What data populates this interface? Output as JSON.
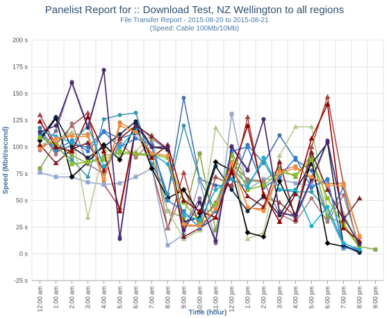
{
  "chart_data": {
    "type": "line",
    "title": "Panelist Report for :: Download Test, NZ Wellington to all regions",
    "subtitle": "File Transfer Report - 2015-08-20 to 2015-08-21",
    "subtitle2": "(Speed: Cable 100Mb/10Mb)",
    "xlabel": "Time (hour)",
    "ylabel": "Speed (Mbit/second)",
    "ylim": [
      -25,
      200
    ],
    "yticks": [
      -25,
      0,
      25,
      50,
      75,
      100,
      125,
      150,
      175,
      200
    ],
    "ytick_labels": [
      "-25 s",
      "0 s",
      "25 s",
      "50 s",
      "75 s",
      "100 s",
      "125 s",
      "150 s",
      "175 s",
      "200 s"
    ],
    "categories": [
      "12:00 am",
      "1:00 am",
      "2:00 am",
      "3:00 am",
      "4:00 am",
      "5:00 am",
      "6:00 am",
      "7:00 am",
      "8:00 am",
      "9:00 am",
      "10:00 am",
      "11:00 am",
      "12:00 pm",
      "1:00 pm",
      "2:00 pm",
      "3:00 pm",
      "4:00 pm",
      "5:00 pm",
      "6:00 pm",
      "7:00 pm",
      "8:00 pm",
      "9:00 pm"
    ],
    "grid": true,
    "legend": "none",
    "series": [
      {
        "color": "#4572a7",
        "marker": "circle",
        "values": [
          118,
          95,
          102,
          100,
          115,
          108,
          113,
          100,
          55,
          146,
          70,
          64,
          64,
          102,
          85,
          111,
          88,
          78,
          34,
          62,
          2,
          null
        ]
      },
      {
        "color": "#aa4643",
        "marker": "triangle",
        "values": [
          130,
          102,
          120,
          132,
          65,
          43,
          118,
          80,
          24,
          76,
          22,
          72,
          64,
          128,
          53,
          48,
          35,
          100,
          147,
          65,
          16,
          null
        ]
      },
      {
        "color": "#89a54e",
        "marker": "square",
        "values": [
          80,
          104,
          92,
          85,
          92,
          94,
          93,
          92,
          40,
          34,
          94,
          22,
          95,
          68,
          68,
          80,
          72,
          93,
          35,
          28,
          7,
          4
        ]
      },
      {
        "color": "#80699b",
        "marker": "circle",
        "values": [
          97,
          115,
          161,
          120,
          172,
          16,
          122,
          108,
          97,
          25,
          52,
          10,
          101,
          79,
          126,
          40,
          34,
          68,
          105,
          35,
          10,
          null
        ]
      },
      {
        "color": "#3d96ae",
        "marker": "circle",
        "values": [
          110,
          100,
          88,
          72,
          126,
          130,
          132,
          84,
          56,
          120,
          70,
          40,
          80,
          65,
          86,
          60,
          58,
          58,
          40,
          8,
          3,
          null
        ]
      },
      {
        "color": "#db843d",
        "marker": "circle",
        "values": [
          100,
          106,
          112,
          112,
          68,
          123,
          115,
          93,
          90,
          26,
          26,
          40,
          86,
          43,
          42,
          78,
          82,
          70,
          66,
          66,
          17,
          null
        ]
      },
      {
        "color": "#92a8cd",
        "marker": "square",
        "values": [
          76,
          72,
          72,
          67,
          65,
          66,
          72,
          80,
          8,
          18,
          68,
          12,
          131,
          60,
          70,
          70,
          66,
          64,
          68,
          5,
          7,
          null
        ]
      },
      {
        "color": "#a47d7c",
        "marker": "circle",
        "values": [
          115,
          93,
          122,
          84,
          75,
          104,
          90,
          106,
          24,
          60,
          30,
          48,
          84,
          70,
          68,
          37,
          30,
          52,
          30,
          55,
          6,
          null
        ]
      },
      {
        "color": "#b5ca92",
        "marker": "triangle",
        "values": [
          102,
          107,
          114,
          34,
          98,
          92,
          96,
          112,
          40,
          14,
          22,
          118,
          96,
          14,
          20,
          92,
          119,
          119,
          40,
          38,
          8,
          null
        ]
      },
      {
        "color": "#000000",
        "marker": "diamond",
        "values": [
          106,
          127,
          72,
          86,
          102,
          88,
          122,
          80,
          52,
          60,
          38,
          86,
          78,
          20,
          16,
          68,
          36,
          88,
          10,
          7,
          2,
          null
        ]
      },
      {
        "color": "#7f1a26",
        "marker": "triangle",
        "values": [
          102,
          85,
          98,
          104,
          78,
          108,
          120,
          110,
          98,
          16,
          24,
          34,
          80,
          54,
          44,
          86,
          32,
          95,
          60,
          32,
          52,
          null
        ]
      },
      {
        "color": "#2f7ed8",
        "marker": "circle",
        "values": [
          112,
          97,
          106,
          96,
          114,
          100,
          108,
          102,
          50,
          40,
          24,
          40,
          96,
          100,
          62,
          72,
          90,
          62,
          70,
          6,
          4,
          null
        ]
      },
      {
        "color": "#0d233a",
        "marker": "circle",
        "values": [
          108,
          128,
          100,
          90,
          100,
          112,
          124,
          100,
          98,
          30,
          34,
          82,
          60,
          40,
          54,
          36,
          60,
          84,
          104,
          8,
          1,
          null
        ]
      },
      {
        "color": "#8bbc21",
        "marker": "square",
        "values": [
          109,
          102,
          84,
          86,
          88,
          96,
          94,
          93,
          90,
          48,
          30,
          46,
          92,
          60,
          64,
          76,
          74,
          88,
          52,
          26,
          6,
          null
        ]
      },
      {
        "color": "#910000",
        "marker": "triangle",
        "values": [
          124,
          100,
          96,
          128,
          96,
          40,
          118,
          90,
          102,
          50,
          40,
          34,
          76,
          120,
          56,
          30,
          56,
          108,
          140,
          24,
          12,
          null
        ]
      },
      {
        "color": "#1aadce",
        "marker": "circle",
        "values": [
          115,
          110,
          104,
          120,
          82,
          100,
          116,
          94,
          84,
          36,
          32,
          60,
          70,
          62,
          90,
          60,
          60,
          26,
          44,
          10,
          4,
          null
        ]
      },
      {
        "color": "#492970",
        "marker": "circle",
        "values": [
          114,
          120,
          160,
          118,
          172,
          14,
          120,
          100,
          100,
          22,
          48,
          12,
          100,
          78,
          126,
          38,
          36,
          70,
          106,
          34,
          9,
          null
        ]
      },
      {
        "color": "#f28f43",
        "marker": "circle",
        "values": [
          98,
          108,
          110,
          110,
          70,
          120,
          114,
          94,
          92,
          28,
          26,
          42,
          84,
          44,
          40,
          76,
          80,
          72,
          64,
          64,
          16,
          null
        ]
      }
    ]
  }
}
